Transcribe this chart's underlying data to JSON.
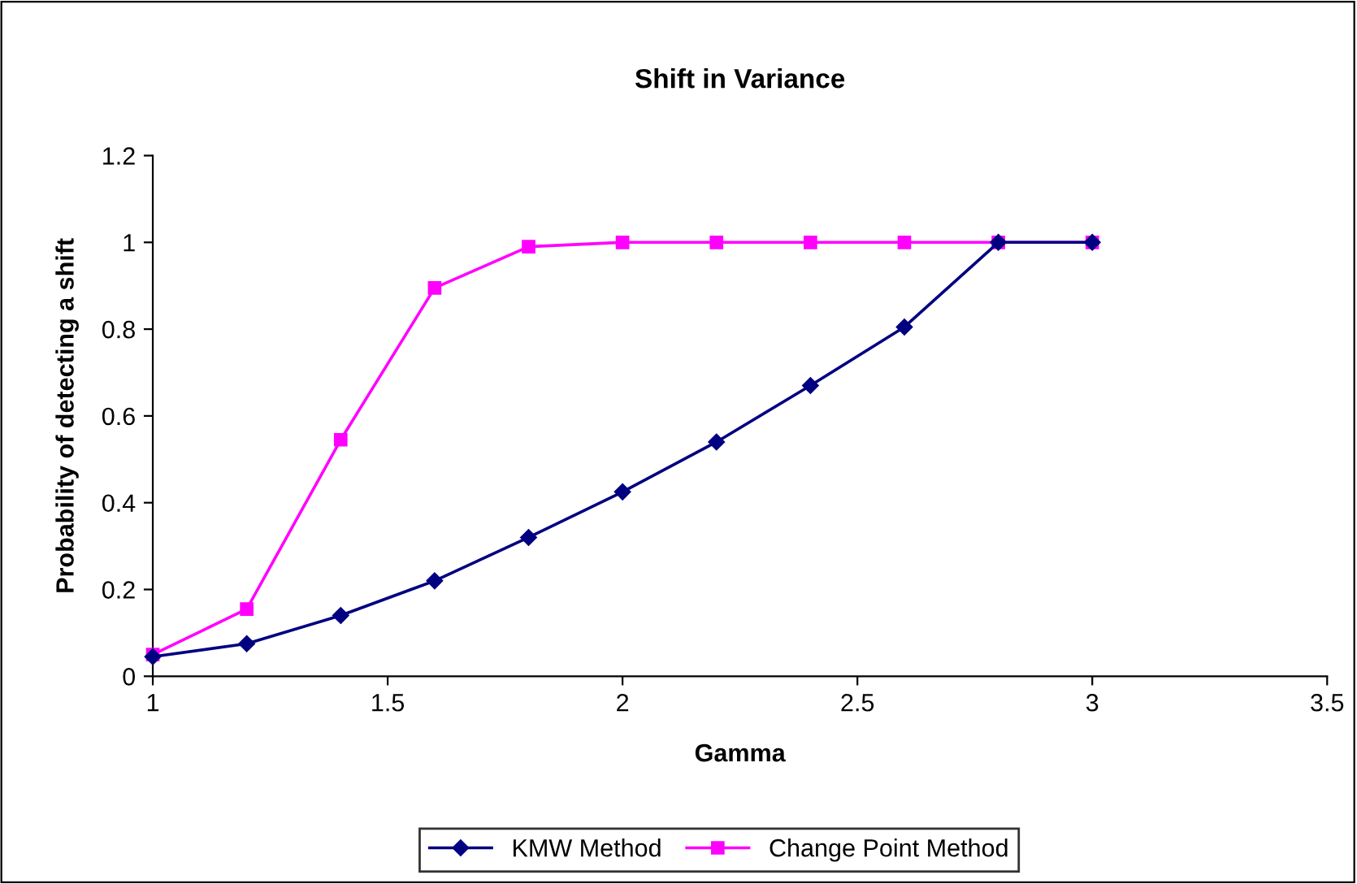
{
  "chart_data": {
    "type": "line",
    "title": "Shift in Variance",
    "xlabel": "Gamma",
    "ylabel": "Probability of detecting a shift",
    "x": [
      1,
      1.2,
      1.4,
      1.6,
      1.8,
      2.0,
      2.2,
      2.4,
      2.6,
      2.8,
      3.0
    ],
    "series": [
      {
        "name": "KMW Method",
        "color": "#000080",
        "marker": "diamond",
        "values": [
          0.045,
          0.075,
          0.14,
          0.22,
          0.32,
          0.425,
          0.54,
          0.67,
          0.805,
          1.0,
          1.0
        ]
      },
      {
        "name": "Change Point Method",
        "color": "#ff00ff",
        "marker": "square",
        "values": [
          0.05,
          0.155,
          0.545,
          0.895,
          0.99,
          1.0,
          1.0,
          1.0,
          1.0,
          1.0,
          1.0
        ]
      }
    ],
    "xlim": [
      1,
      3.5
    ],
    "xticks": [
      1,
      1.5,
      2,
      2.5,
      3,
      3.5
    ],
    "ylim": [
      0,
      1.2
    ],
    "yticks": [
      0,
      0.2,
      0.4,
      0.6,
      0.8,
      1,
      1.2
    ],
    "grid": false,
    "legend": "bottom",
    "line_style": "solid"
  }
}
